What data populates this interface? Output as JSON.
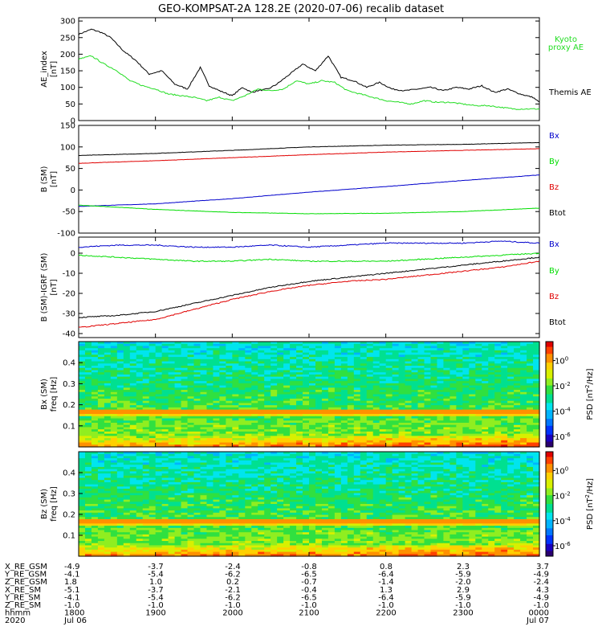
{
  "title": "GEO-KOMPSAT-2A 128.2E (2020-07-06) recalib dataset",
  "colors": {
    "black": "#000000",
    "green": "#00dd00",
    "blue": "#0000cc",
    "red": "#e00000",
    "proxy": "#22dd22"
  },
  "chart_data": [
    {
      "type": "line",
      "ylabel": "AE_index",
      "yunit": "[nT]",
      "ylim": [
        0,
        310
      ],
      "yticks": [
        0,
        50,
        100,
        150,
        200,
        250,
        300
      ],
      "xlim": [
        0,
        360
      ],
      "series": [
        {
          "name": "Themis AE",
          "color": "#000000",
          "x": [
            0,
            10,
            18,
            25,
            35,
            45,
            55,
            65,
            75,
            85,
            95,
            102,
            110,
            120,
            128,
            135,
            140,
            148,
            155,
            165,
            175,
            185,
            195,
            205,
            215,
            225,
            235,
            245,
            255,
            265,
            275,
            285,
            295,
            305,
            315,
            325,
            335,
            345,
            355,
            360
          ],
          "y": [
            260,
            275,
            265,
            250,
            210,
            180,
            140,
            150,
            110,
            95,
            160,
            105,
            90,
            75,
            100,
            85,
            90,
            95,
            110,
            140,
            170,
            150,
            195,
            130,
            120,
            100,
            115,
            95,
            90,
            95,
            100,
            90,
            100,
            95,
            105,
            85,
            95,
            80,
            70,
            55
          ]
        },
        {
          "name": "Kyoto proxy AE",
          "color": "#22dd22",
          "x": [
            0,
            10,
            20,
            30,
            40,
            50,
            60,
            70,
            80,
            90,
            100,
            110,
            120,
            130,
            140,
            150,
            160,
            170,
            180,
            190,
            200,
            210,
            220,
            230,
            240,
            250,
            260,
            270,
            280,
            290,
            300,
            310,
            320,
            330,
            340,
            350,
            360
          ],
          "y": [
            185,
            195,
            170,
            150,
            120,
            105,
            95,
            80,
            75,
            70,
            60,
            70,
            60,
            75,
            95,
            90,
            95,
            120,
            110,
            120,
            115,
            90,
            80,
            70,
            60,
            55,
            50,
            60,
            55,
            55,
            50,
            45,
            45,
            40,
            35,
            35,
            35
          ]
        }
      ],
      "legend": [
        "Kyoto",
        "proxy AE",
        "Themis AE"
      ]
    },
    {
      "type": "line",
      "ylabel": "B (SM)",
      "yunit": "[nT]",
      "ylim": [
        -100,
        150
      ],
      "yticks": [
        -100,
        -50,
        0,
        50,
        100,
        150
      ],
      "xlim": [
        0,
        360
      ],
      "series": [
        {
          "name": "Btot",
          "color": "#000000",
          "x": [
            0,
            60,
            120,
            180,
            240,
            300,
            360
          ],
          "y": [
            80,
            85,
            92,
            100,
            104,
            106,
            110
          ]
        },
        {
          "name": "Bz",
          "color": "#e00000",
          "x": [
            0,
            60,
            120,
            180,
            240,
            300,
            360
          ],
          "y": [
            62,
            68,
            75,
            82,
            88,
            92,
            96
          ]
        },
        {
          "name": "Bx",
          "color": "#0000cc",
          "x": [
            0,
            60,
            120,
            180,
            240,
            300,
            360
          ],
          "y": [
            -38,
            -32,
            -20,
            -5,
            8,
            22,
            35
          ]
        },
        {
          "name": "By",
          "color": "#00dd00",
          "x": [
            0,
            60,
            120,
            180,
            240,
            300,
            360
          ],
          "y": [
            -35,
            -45,
            -52,
            -55,
            -54,
            -50,
            -42
          ]
        }
      ],
      "legend": [
        "Bx",
        "By",
        "Bz",
        "Btot"
      ]
    },
    {
      "type": "line",
      "ylabel": "B (SM)-IGRF (SM)",
      "yunit": "[nT]",
      "ylim": [
        -42,
        8
      ],
      "yticks": [
        -40,
        -30,
        -20,
        -10,
        0
      ],
      "xlim": [
        0,
        360
      ],
      "series": [
        {
          "name": "Bx",
          "color": "#0000cc",
          "x": [
            0,
            30,
            60,
            90,
            120,
            150,
            180,
            210,
            240,
            270,
            300,
            330,
            360
          ],
          "y": [
            3,
            4,
            4,
            3,
            3,
            4,
            3,
            4,
            5,
            5,
            5,
            6,
            5
          ]
        },
        {
          "name": "By",
          "color": "#00dd00",
          "x": [
            0,
            30,
            60,
            90,
            120,
            150,
            180,
            210,
            240,
            270,
            300,
            330,
            360
          ],
          "y": [
            -1,
            -2,
            -3,
            -4,
            -4,
            -3,
            -4,
            -4,
            -4,
            -3,
            -2,
            -1,
            0
          ]
        },
        {
          "name": "Btot",
          "color": "#000000",
          "x": [
            0,
            30,
            60,
            90,
            120,
            150,
            180,
            210,
            240,
            270,
            300,
            330,
            360
          ],
          "y": [
            -32,
            -31,
            -29,
            -25,
            -21,
            -17,
            -14,
            -12,
            -10,
            -8,
            -6,
            -4,
            -2
          ]
        },
        {
          "name": "Bz",
          "color": "#e00000",
          "x": [
            0,
            30,
            60,
            90,
            120,
            150,
            180,
            210,
            240,
            270,
            300,
            330,
            360
          ],
          "y": [
            -37,
            -35,
            -33,
            -28,
            -23,
            -19,
            -16,
            -14,
            -13,
            -11,
            -9,
            -7,
            -4
          ]
        }
      ],
      "legend": [
        "Bx",
        "By",
        "Bz",
        "Btot"
      ]
    },
    {
      "type": "heatmap",
      "ylabel": "Bx (SM)",
      "yunit": "freq [Hz]",
      "ylim": [
        0,
        0.5
      ],
      "yticks": [
        0.1,
        0.2,
        0.3,
        0.4
      ],
      "colorbar": {
        "label": "PSD [nT",
        "unit_sup": "2",
        "unit_end": "/Hz]",
        "ticks": [
          "10",
          "10",
          "10",
          "10"
        ],
        "exps": [
          "0",
          "-2",
          "-4",
          "-6"
        ]
      },
      "line_freq": 0.17
    },
    {
      "type": "heatmap",
      "ylabel": "Bz (SM)",
      "yunit": "freq [Hz]",
      "ylim": [
        0,
        0.5
      ],
      "yticks": [
        0.1,
        0.2,
        0.3,
        0.4
      ],
      "colorbar": {
        "label": "PSD [nT",
        "unit_sup": "2",
        "unit_end": "/Hz]",
        "ticks": [
          "10",
          "10",
          "10",
          "10"
        ],
        "exps": [
          "0",
          "-2",
          "-4",
          "-6"
        ]
      },
      "line_freq": 0.17
    }
  ],
  "ephemeris": {
    "rows": [
      {
        "label": "X_RE_GSM",
        "values": [
          "-4.9",
          "-3.7",
          "-2.4",
          "-0.8",
          "0.8",
          "2.3",
          "3.7"
        ]
      },
      {
        "label": "Y_RE_GSM",
        "values": [
          "-4.1",
          "-5.4",
          "-6.2",
          "-6.5",
          "-6.4",
          "-5.9",
          "-4.9"
        ]
      },
      {
        "label": "Z_RE_GSM",
        "values": [
          "1.8",
          "1.0",
          "0.2",
          "-0.7",
          "-1.4",
          "-2.0",
          "-2.4"
        ]
      },
      {
        "label": "X_RE_SM",
        "values": [
          "-5.1",
          "-3.7",
          "-2.1",
          "-0.4",
          "1.3",
          "2.9",
          "4.3"
        ]
      },
      {
        "label": "Y_RE_SM",
        "values": [
          "-4.1",
          "-5.4",
          "-6.2",
          "-6.5",
          "-6.4",
          "-5.9",
          "-4.9"
        ]
      },
      {
        "label": "Z_RE_SM",
        "values": [
          "-1.0",
          "-1.0",
          "-1.0",
          "-1.0",
          "-1.0",
          "-1.0",
          "-1.0"
        ]
      },
      {
        "label": "hhmm",
        "values": [
          "1800",
          "1900",
          "2000",
          "2100",
          "2200",
          "2300",
          "0000"
        ]
      },
      {
        "label": "2020",
        "values": [
          "Jul 06",
          "",
          "",
          "",
          "",
          "",
          "Jul 07"
        ]
      }
    ]
  }
}
